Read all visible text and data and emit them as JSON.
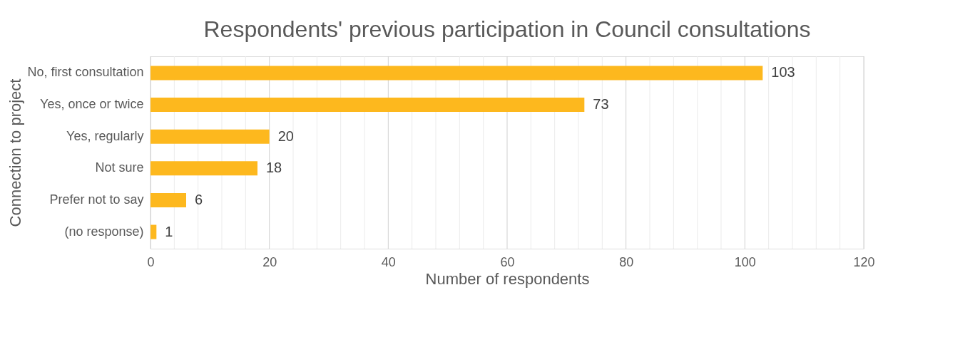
{
  "chart_data": {
    "type": "bar",
    "orientation": "horizontal",
    "title": "Respondents' previous participation in Council consultations",
    "xlabel": "Number of respondents",
    "ylabel": "Connection to project",
    "categories": [
      "No, first consultation",
      "Yes, once or twice",
      "Yes, regularly",
      "Not sure",
      "Prefer not to say",
      "(no response)"
    ],
    "values": [
      103,
      73,
      20,
      18,
      6,
      1
    ],
    "color": "#fdb81e",
    "data_labels": true,
    "grid": "x",
    "legend": false,
    "xlim": [
      0,
      120
    ],
    "xticks": [
      0,
      {
        "value": 4,
        "label": null
      },
      {
        "value": 8,
        "label": null
      },
      {
        "value": 12,
        "label": null
      },
      {
        "value": 16,
        "label": null
      },
      20,
      {
        "value": 24,
        "label": null
      },
      {
        "value": 28,
        "label": null
      },
      {
        "value": 32,
        "label": null
      },
      {
        "value": 36,
        "label": null
      },
      40,
      {
        "value": 44,
        "label": null
      },
      {
        "value": 48,
        "label": null
      },
      {
        "value": 52,
        "label": null
      },
      {
        "value": 56,
        "label": null
      },
      60,
      {
        "value": 64,
        "label": null
      },
      {
        "value": 68,
        "label": null
      },
      {
        "value": 72,
        "label": null
      },
      {
        "value": 76,
        "label": null
      },
      80,
      {
        "value": 84,
        "label": null
      },
      {
        "value": 88,
        "label": null
      },
      {
        "value": 92,
        "label": null
      },
      {
        "value": 96,
        "label": null
      },
      100,
      {
        "value": 104,
        "label": null
      },
      {
        "value": 108,
        "label": null
      },
      {
        "value": 112,
        "label": null
      },
      {
        "value": 116,
        "label": null
      },
      120
    ]
  }
}
